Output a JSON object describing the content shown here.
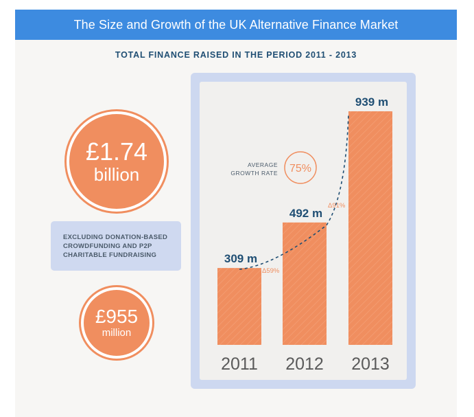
{
  "header": {
    "title": "The Size and Growth of the UK Alternative Finance Market",
    "subtitle": "TOTAL FINANCE RAISED IN THE PERIOD 2011 - 2013"
  },
  "totals": {
    "total_amount": "£1.74",
    "total_unit": "billion",
    "note_lines": [
      "EXCLUDING DONATION-BASED",
      "CROWDFUNDING AND P2P",
      "CHARITABLE FUNDRAISING"
    ],
    "excluded_amount": "£955",
    "excluded_unit": "million"
  },
  "colors": {
    "banner": "#3d8be0",
    "bar": "#f08e5f",
    "value_text": "#1f4e73",
    "growth_text": "#f08e5f",
    "frame": "#cdd8f0"
  },
  "chart_data": {
    "type": "bar",
    "categories": [
      "2011",
      "2012",
      "2013"
    ],
    "values": [
      309,
      492,
      939
    ],
    "value_labels": [
      "309 m",
      "492 m",
      "939 m"
    ],
    "growth_labels": [
      "Δ59%",
      "Δ91%"
    ],
    "average_growth": {
      "label_lines": [
        "AVERAGE",
        "GROWTH RATE"
      ],
      "value": "75%"
    },
    "ylim": [
      0,
      1000
    ],
    "grid": false
  }
}
